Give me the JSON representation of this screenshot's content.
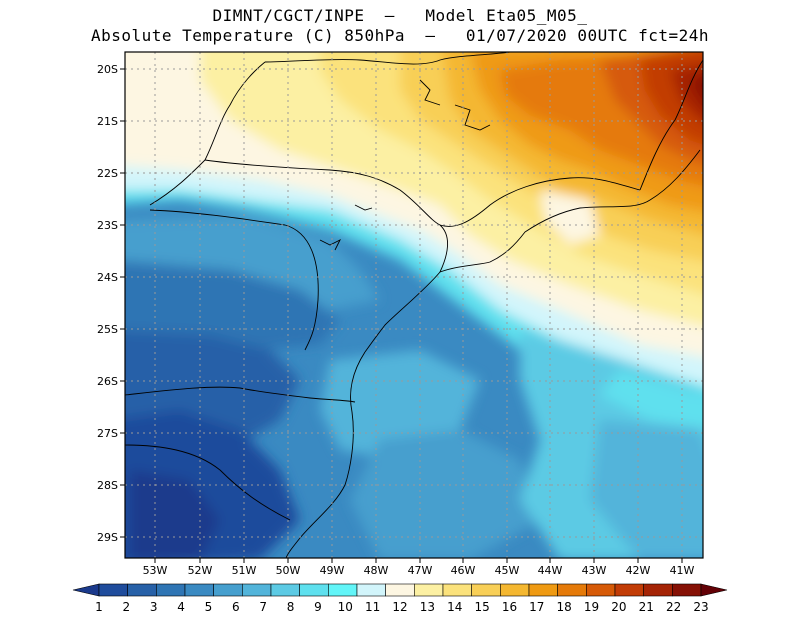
{
  "title_line1": "DIMNT/CGCT/INPE  –   Model Eta05_M05_",
  "title_line2": "Absolute Temperature (C) 850hPa  –   01/07/2020 00UTC fct=24h",
  "lat_labels": [
    "20S",
    "21S",
    "22S",
    "23S",
    "24S",
    "25S",
    "26S",
    "27S",
    "28S",
    "29S"
  ],
  "lon_labels": [
    "53W",
    "52W",
    "51W",
    "50W",
    "49W",
    "48W",
    "47W",
    "46W",
    "45W",
    "44W",
    "43W",
    "42W",
    "41W"
  ],
  "colorbar": {
    "labels": [
      "1",
      "2",
      "3",
      "4",
      "5",
      "6",
      "7",
      "8",
      "9",
      "10",
      "11",
      "12",
      "13",
      "14",
      "15",
      "16",
      "17",
      "18",
      "19",
      "20",
      "21",
      "22",
      "23"
    ],
    "colors": [
      "#1b3a8c",
      "#1f4c9c",
      "#2761a8",
      "#2f75b4",
      "#3a8ac2",
      "#469fce",
      "#52b4da",
      "#5ccae4",
      "#5ee0ee",
      "#62f5f8",
      "#d2f5fb",
      "#fdf6e2",
      "#fcf0a3",
      "#fbe27c",
      "#f8cf57",
      "#f4b730",
      "#ef9a12",
      "#e57a09",
      "#d65a07",
      "#c23c06",
      "#a52405",
      "#861105",
      "#630106"
    ]
  },
  "fields": {
    "frame_color": "#000000",
    "grid_color": "#9a9a9a",
    "coast_color": "#000000"
  }
}
